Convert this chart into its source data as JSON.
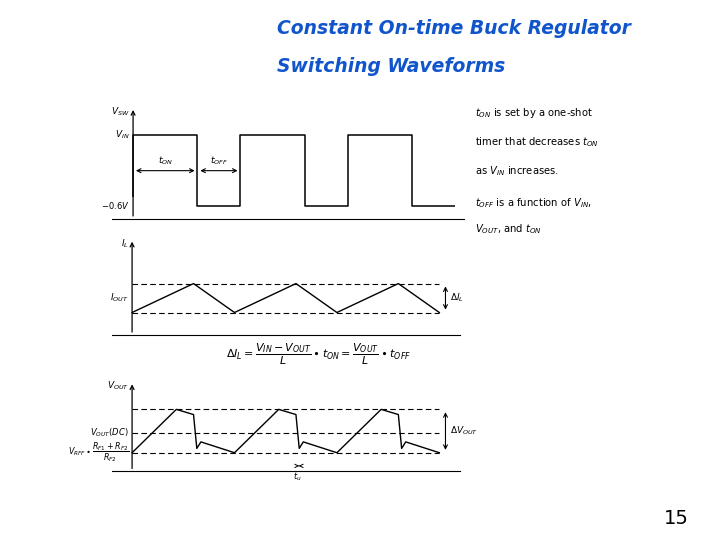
{
  "title_line1": "Constant On-time Buck Regulator",
  "title_line2": "Switching Waveforms",
  "title_color": "#1155CC",
  "separator_color": "#C8A020",
  "bg_color": "#FFFFFF",
  "page_number": "15",
  "ton": 1.5,
  "toff": 1.0,
  "n_cycles": 3,
  "vsw_vin": 1.0,
  "vsw_low": -0.15,
  "iout": 0.5,
  "delta_il": 0.22,
  "vout_dc": 0.52,
  "delta_vout": 0.28,
  "note1a": "t",
  "note1b": "ON",
  "note1c": " is set by a one-shot",
  "note1d": "timer that decreases t",
  "note1e": "ON",
  "note1f": "",
  "note1g": "as V",
  "note1h": "IN",
  "note1i": " increases.",
  "note2a": "t",
  "note2b": "OFF",
  "note2c": " is a function of V",
  "note2d": "IN,",
  "note2e": "V",
  "note2f": "OUT,",
  "note2g": " and t",
  "note2h": "ON"
}
